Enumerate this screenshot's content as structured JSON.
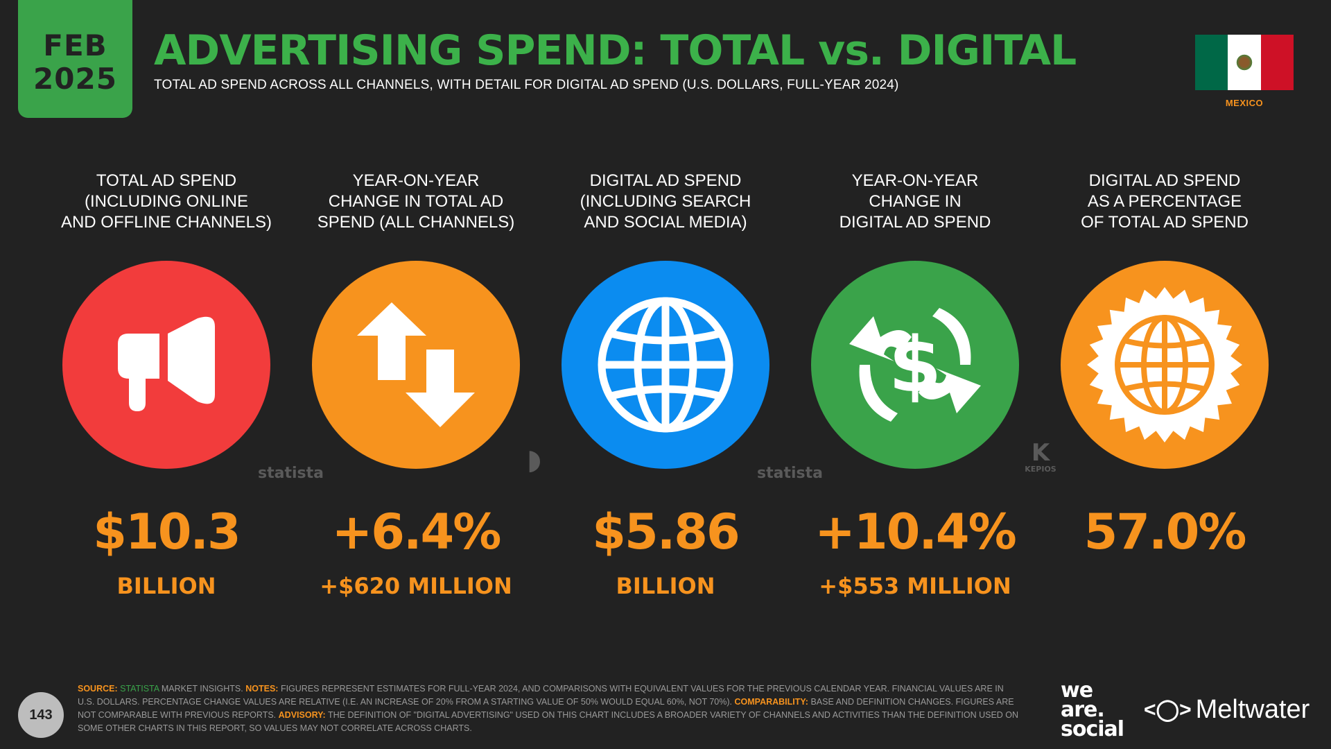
{
  "badge": {
    "month": "FEB",
    "year": "2025"
  },
  "title": "ADVERTISING SPEND: TOTAL vs. DIGITAL",
  "subtitle": "TOTAL AD SPEND ACROSS ALL CHANNELS, WITH DETAIL FOR DIGITAL AD SPEND (U.S. DOLLARS, FULL-YEAR 2024)",
  "country": "MEXICO",
  "colors": {
    "green": "#3aa34a",
    "orange": "#f7931e",
    "red": "#f23c3c",
    "blue": "#0b8cf0",
    "background": "#222222"
  },
  "metrics": [
    {
      "label": "TOTAL AD SPEND\n(INCLUDING ONLINE\nAND OFFLINE CHANNELS)",
      "icon": "megaphone-icon",
      "circle_color": "#f23c3c",
      "value": "$10.3",
      "sub": "BILLION"
    },
    {
      "label": "YEAR-ON-YEAR\nCHANGE IN TOTAL AD\nSPEND (ALL CHANNELS)",
      "icon": "up-down-arrows-icon",
      "circle_color": "#f7931e",
      "value": "+6.4%",
      "sub": "+$620 MILLION"
    },
    {
      "label": "DIGITAL AD SPEND\n(INCLUDING SEARCH\nAND SOCIAL MEDIA)",
      "icon": "globe-icon",
      "circle_color": "#0b8cf0",
      "value": "$5.86",
      "sub": "BILLION"
    },
    {
      "label": "YEAR-ON-YEAR\nCHANGE IN\nDIGITAL AD SPEND",
      "icon": "dollar-cycle-icon",
      "circle_color": "#3aa34a",
      "value": "+10.4%",
      "sub": "+$553 MILLION"
    },
    {
      "label": "DIGITAL AD SPEND\nAS A PERCENTAGE\nOF TOTAL AD SPEND",
      "icon": "globe-seal-icon",
      "circle_color": "#f7931e",
      "value": "57.0%",
      "sub": ""
    }
  ],
  "watermarks": {
    "statista": "statista",
    "kepios": "KEPIOS"
  },
  "footer": {
    "page_number": "143",
    "source_label": "SOURCE:",
    "source_name": "STATISTA",
    "source_rest": "MARKET INSIGHTS.",
    "notes_label": "NOTES:",
    "notes_text": "FIGURES REPRESENT ESTIMATES FOR FULL-YEAR 2024, AND COMPARISONS WITH EQUIVALENT VALUES FOR THE PREVIOUS CALENDAR YEAR. FINANCIAL VALUES ARE IN U.S. DOLLARS. PERCENTAGE CHANGE VALUES ARE RELATIVE (I.E. AN INCREASE OF 20% FROM A STARTING VALUE OF 50% WOULD EQUAL 60%, NOT 70%).",
    "comparability_label": "COMPARABILITY:",
    "comparability_text": "BASE AND DEFINITION CHANGES. FIGURES ARE NOT COMPARABLE WITH PREVIOUS REPORTS.",
    "advisory_label": "ADVISORY:",
    "advisory_text": "THE DEFINITION OF \"DIGITAL ADVERTISING\" USED ON THIS CHART INCLUDES A BROADER VARIETY OF CHANNELS AND ACTIVITIES THAN THE DEFINITION USED ON SOME OTHER CHARTS IN THIS REPORT, SO VALUES MAY NOT CORRELATE ACROSS CHARTS.",
    "brand_was": [
      "we",
      "are.",
      "social"
    ],
    "brand_meltwater": "Meltwater"
  }
}
